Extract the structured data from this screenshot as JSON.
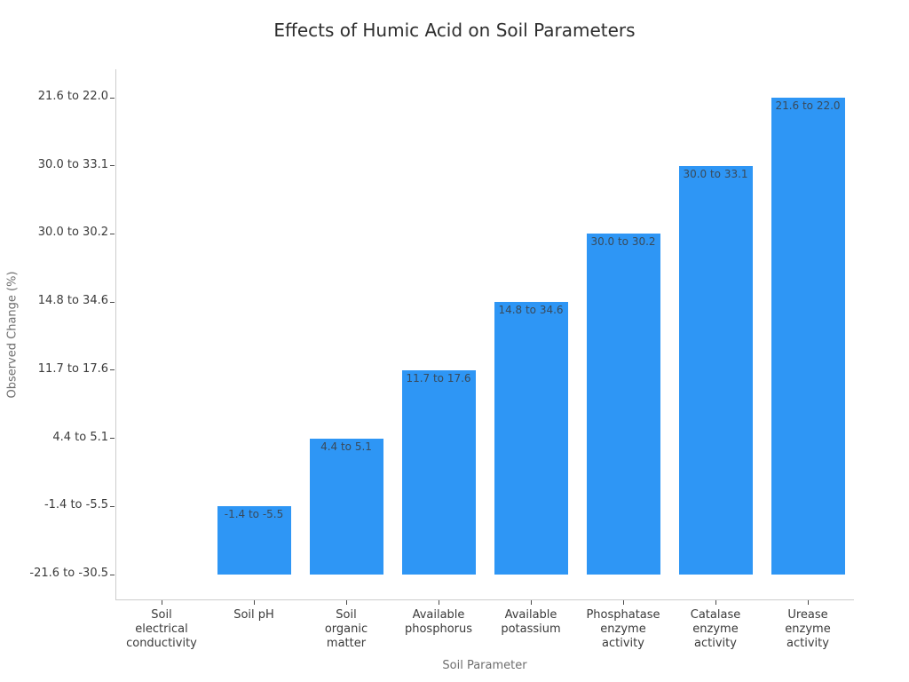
{
  "colors": {
    "background": "#ffffff",
    "bar": "#2e96f5",
    "bar_label_text": "#394a5a",
    "tick_text": "#3a3a3a",
    "tick_mark": "#4a4a4a",
    "axis_label_text": "#6e6e6e",
    "title_text": "#2e2e2e",
    "spine": "#cccccc"
  },
  "chart_data": {
    "type": "bar",
    "title": "Effects of Humic Acid on Soil Parameters",
    "xlabel": "Soil Parameter",
    "ylabel": "Observed Change (%)",
    "y_axis_type": "ordinal",
    "grid": false,
    "legend": false,
    "categories": [
      "Soil electrical conductivity",
      "Soil pH",
      "Soil organic matter",
      "Available phosphorus",
      "Available potassium",
      "Phosphatase enzyme activity",
      "Catalase enzyme activity",
      "Urease enzyme activity"
    ],
    "ytick_labels_bottom_to_top": [
      "-21.6 to -30.5",
      "-1.4 to -5.5",
      "4.4 to 5.1",
      "11.7 to 17.6",
      "14.8 to 34.6",
      "30.0 to 30.2",
      "30.0 to 33.1",
      "21.6 to 22.0"
    ],
    "bars": [
      {
        "category": "Soil electrical conductivity",
        "tick_lines": [
          "Soil",
          "electrical",
          "conductivity"
        ],
        "range_label": "-21.6 to -30.5",
        "ordinal_value": 0,
        "bar_label_visible": false
      },
      {
        "category": "Soil pH",
        "tick_lines": [
          "Soil pH"
        ],
        "range_label": "-1.4 to -5.5",
        "ordinal_value": 1,
        "bar_label_visible": true
      },
      {
        "category": "Soil organic matter",
        "tick_lines": [
          "Soil",
          "organic",
          "matter"
        ],
        "range_label": "4.4 to 5.1",
        "ordinal_value": 2,
        "bar_label_visible": true
      },
      {
        "category": "Available phosphorus",
        "tick_lines": [
          "Available",
          "phosphorus"
        ],
        "range_label": "11.7 to 17.6",
        "ordinal_value": 3,
        "bar_label_visible": true
      },
      {
        "category": "Available potassium",
        "tick_lines": [
          "Available",
          "potassium"
        ],
        "range_label": "14.8 to 34.6",
        "ordinal_value": 4,
        "bar_label_visible": true
      },
      {
        "category": "Phosphatase enzyme activity",
        "tick_lines": [
          "Phosphatase",
          "enzyme",
          "activity"
        ],
        "range_label": "30.0 to 30.2",
        "ordinal_value": 5,
        "bar_label_visible": true
      },
      {
        "category": "Catalase enzyme activity",
        "tick_lines": [
          "Catalase",
          "enzyme",
          "activity"
        ],
        "range_label": "30.0 to 33.1",
        "ordinal_value": 6,
        "bar_label_visible": true
      },
      {
        "category": "Urease enzyme activity",
        "tick_lines": [
          "Urease",
          "enzyme",
          "activity"
        ],
        "range_label": "21.6 to 22.0",
        "ordinal_value": 7,
        "bar_label_visible": true
      }
    ]
  }
}
